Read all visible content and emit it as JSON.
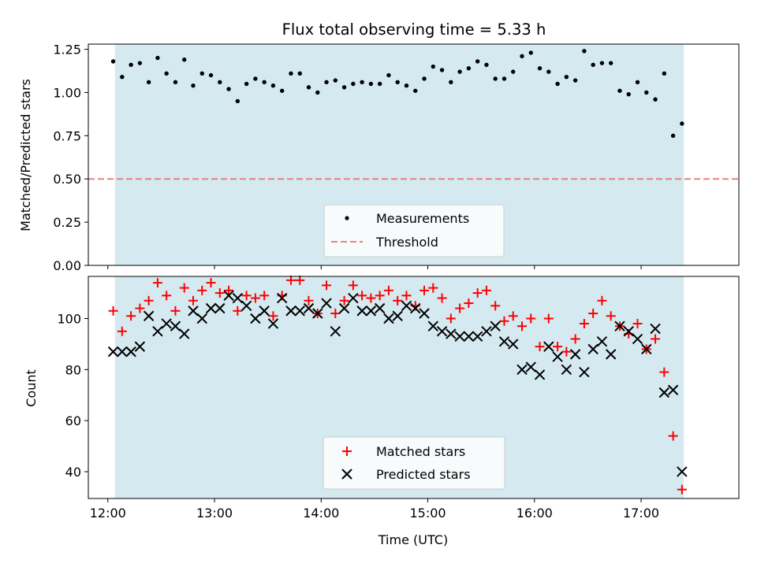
{
  "colors": {
    "shade": "#d4eaf0",
    "threshold": "#e88080",
    "matched": "#ff0000",
    "predicted": "#000000",
    "measurement": "#000000",
    "axes": "#000000"
  },
  "chart_data": [
    {
      "type": "scatter",
      "title": "Flux total observing time = 5.33 h",
      "xlabel": "",
      "ylabel": "Matched/Predicted stars",
      "ylim": [
        0.0,
        1.28
      ],
      "xlim": [
        "11:49",
        "17:55"
      ],
      "shaded_span": [
        "12:04",
        "17:24"
      ],
      "yticks": [
        0.0,
        0.25,
        0.5,
        0.75,
        1.0,
        1.25
      ],
      "ytick_labels": [
        "0.00",
        "0.25",
        "0.50",
        "0.75",
        "1.00",
        "1.25"
      ],
      "legend": {
        "placement": "lower center",
        "entries": [
          "Measurements",
          "Threshold"
        ]
      },
      "threshold": 0.5,
      "series": [
        {
          "name": "Measurements",
          "marker": "dot",
          "x": [
            "12:03",
            "12:08",
            "12:13",
            "12:18",
            "12:23",
            "12:28",
            "12:33",
            "12:38",
            "12:43",
            "12:48",
            "12:53",
            "12:58",
            "13:03",
            "13:08",
            "13:13",
            "13:18",
            "13:23",
            "13:28",
            "13:33",
            "13:38",
            "13:43",
            "13:48",
            "13:53",
            "13:58",
            "14:03",
            "14:08",
            "14:13",
            "14:18",
            "14:23",
            "14:28",
            "14:33",
            "14:38",
            "14:43",
            "14:48",
            "14:53",
            "14:58",
            "15:03",
            "15:08",
            "15:13",
            "15:18",
            "15:23",
            "15:28",
            "15:33",
            "15:38",
            "15:43",
            "15:48",
            "15:53",
            "15:58",
            "16:03",
            "16:08",
            "16:13",
            "16:18",
            "16:23",
            "16:28",
            "16:33",
            "16:38",
            "16:43",
            "16:48",
            "16:53",
            "16:58",
            "17:03",
            "17:08",
            "17:13",
            "17:18",
            "17:23"
          ],
          "y": [
            1.18,
            1.09,
            1.16,
            1.17,
            1.06,
            1.2,
            1.11,
            1.06,
            1.19,
            1.04,
            1.11,
            1.1,
            1.06,
            1.02,
            0.95,
            1.05,
            1.08,
            1.06,
            1.04,
            1.01,
            1.11,
            1.11,
            1.03,
            1.0,
            1.06,
            1.07,
            1.03,
            1.05,
            1.06,
            1.05,
            1.05,
            1.1,
            1.06,
            1.04,
            1.01,
            1.08,
            1.15,
            1.13,
            1.06,
            1.12,
            1.14,
            1.18,
            1.16,
            1.08,
            1.08,
            1.12,
            1.21,
            1.23,
            1.14,
            1.12,
            1.05,
            1.09,
            1.07,
            1.24,
            1.16,
            1.17,
            1.17,
            1.01,
            0.99,
            1.06,
            1.0,
            0.96,
            1.11,
            0.75,
            0.82
          ]
        }
      ]
    },
    {
      "type": "scatter",
      "xlabel": "Time (UTC)",
      "ylabel": "Count",
      "ylim": [
        29.5,
        116.5
      ],
      "xlim": [
        "11:49",
        "17:55"
      ],
      "shaded_span": [
        "12:04",
        "17:24"
      ],
      "xticks": [
        "12:00",
        "13:00",
        "14:00",
        "15:00",
        "16:00",
        "17:00"
      ],
      "yticks": [
        40,
        60,
        80,
        100
      ],
      "ytick_labels": [
        "40",
        "60",
        "80",
        "100"
      ],
      "legend": {
        "placement": "lower center",
        "entries": [
          "Matched stars",
          "Predicted stars"
        ]
      },
      "series": [
        {
          "name": "Matched stars",
          "marker": "plus",
          "x": [
            "12:03",
            "12:08",
            "12:13",
            "12:18",
            "12:23",
            "12:28",
            "12:33",
            "12:38",
            "12:43",
            "12:48",
            "12:53",
            "12:58",
            "13:03",
            "13:08",
            "13:13",
            "13:18",
            "13:23",
            "13:28",
            "13:33",
            "13:38",
            "13:43",
            "13:48",
            "13:53",
            "13:58",
            "14:03",
            "14:08",
            "14:13",
            "14:18",
            "14:23",
            "14:28",
            "14:33",
            "14:38",
            "14:43",
            "14:48",
            "14:53",
            "14:58",
            "15:03",
            "15:08",
            "15:13",
            "15:18",
            "15:23",
            "15:28",
            "15:33",
            "15:38",
            "15:43",
            "15:48",
            "15:53",
            "15:58",
            "16:03",
            "16:08",
            "16:13",
            "16:18",
            "16:23",
            "16:28",
            "16:33",
            "16:38",
            "16:43",
            "16:48",
            "16:53",
            "16:58",
            "17:03",
            "17:08",
            "17:13",
            "17:18",
            "17:23"
          ],
          "y": [
            103,
            95,
            101,
            104,
            107,
            114,
            109,
            103,
            112,
            107,
            111,
            114,
            110,
            111,
            103,
            109,
            108,
            109,
            101,
            109,
            115,
            115,
            107,
            102,
            113,
            102,
            107,
            113,
            109,
            108,
            109,
            111,
            107,
            109,
            105,
            111,
            112,
            108,
            100,
            104,
            106,
            110,
            111,
            105,
            99,
            101,
            97,
            100,
            89,
            100,
            89,
            87,
            92,
            98,
            102,
            107,
            101,
            97,
            94,
            98,
            88,
            92,
            79,
            54,
            33
          ]
        },
        {
          "name": "Predicted stars",
          "marker": "x",
          "x": [
            "12:03",
            "12:08",
            "12:13",
            "12:18",
            "12:23",
            "12:28",
            "12:33",
            "12:38",
            "12:43",
            "12:48",
            "12:53",
            "12:58",
            "13:03",
            "13:08",
            "13:13",
            "13:18",
            "13:23",
            "13:28",
            "13:33",
            "13:38",
            "13:43",
            "13:48",
            "13:53",
            "13:58",
            "14:03",
            "14:08",
            "14:13",
            "14:18",
            "14:23",
            "14:28",
            "14:33",
            "14:38",
            "14:43",
            "14:48",
            "14:53",
            "14:58",
            "15:03",
            "15:08",
            "15:13",
            "15:18",
            "15:23",
            "15:28",
            "15:33",
            "15:38",
            "15:43",
            "15:48",
            "15:53",
            "15:58",
            "16:03",
            "16:08",
            "16:13",
            "16:18",
            "16:23",
            "16:28",
            "16:33",
            "16:38",
            "16:43",
            "16:48",
            "16:53",
            "16:58",
            "17:03",
            "17:08",
            "17:13",
            "17:18",
            "17:23"
          ],
          "y": [
            87,
            87,
            87,
            89,
            101,
            95,
            98,
            97,
            94,
            103,
            100,
            104,
            104,
            109,
            108,
            105,
            100,
            103,
            98,
            108,
            103,
            103,
            104,
            102,
            106,
            95,
            104,
            108,
            103,
            103,
            104,
            100,
            101,
            105,
            104,
            102,
            97,
            95,
            94,
            93,
            93,
            93,
            95,
            97,
            91,
            90,
            80,
            81,
            78,
            89,
            85,
            80,
            86,
            79,
            88,
            91,
            86,
            97,
            95,
            92,
            88,
            96,
            71,
            72,
            40
          ]
        }
      ]
    }
  ]
}
